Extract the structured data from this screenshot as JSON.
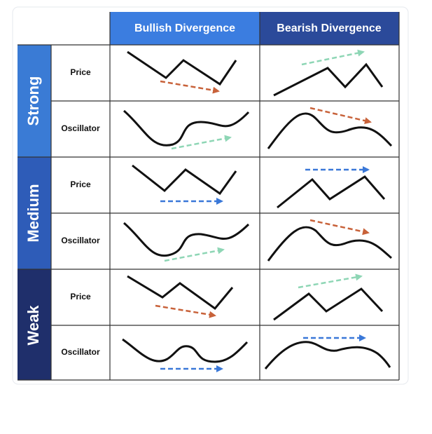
{
  "columns": [
    "Bullish Divergence",
    "Bearish Divergence"
  ],
  "groups": [
    {
      "label": "Strong",
      "rows": [
        "Price",
        "Oscillator"
      ]
    },
    {
      "label": "Medium",
      "rows": [
        "Price",
        "Oscillator"
      ]
    },
    {
      "label": "Weak",
      "rows": [
        "Price",
        "Oscillator"
      ]
    }
  ]
}
